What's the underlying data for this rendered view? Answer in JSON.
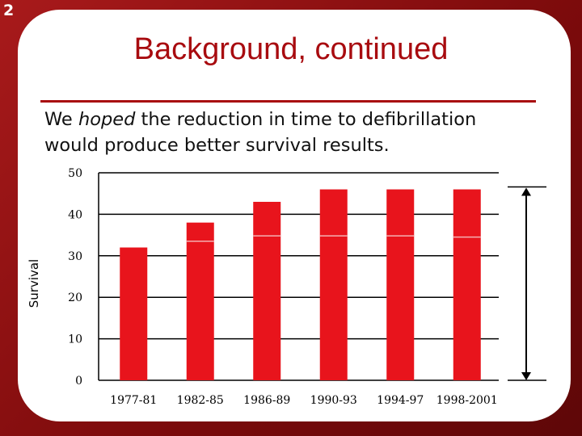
{
  "slide_number": "2",
  "title": "Background, continued",
  "body": {
    "line1_prefix": "We ",
    "line1_emph": "hoped",
    "line1_suffix": " the reduction in time to defibrillation",
    "line2": "would produce better survival results."
  },
  "colors": {
    "accent": "#a80b0f",
    "bar": "#e8141c",
    "background": "#8b0f10"
  },
  "chart_data": {
    "type": "bar",
    "title": "",
    "xlabel": "",
    "ylabel": "Survival",
    "categories": [
      "1977-81",
      "1982-85",
      "1986-89",
      "1990-93",
      "1994-97",
      "1998-2001"
    ],
    "values": [
      32,
      38,
      43,
      46,
      46,
      46
    ],
    "divider_values": [
      null,
      33.5,
      34.8,
      34.8,
      34.8,
      34.5
    ],
    "ylim": [
      0,
      50
    ],
    "yticks": [
      "0",
      "10",
      "20",
      "30",
      "40",
      "50"
    ],
    "grid": true,
    "range_arrow": true
  }
}
